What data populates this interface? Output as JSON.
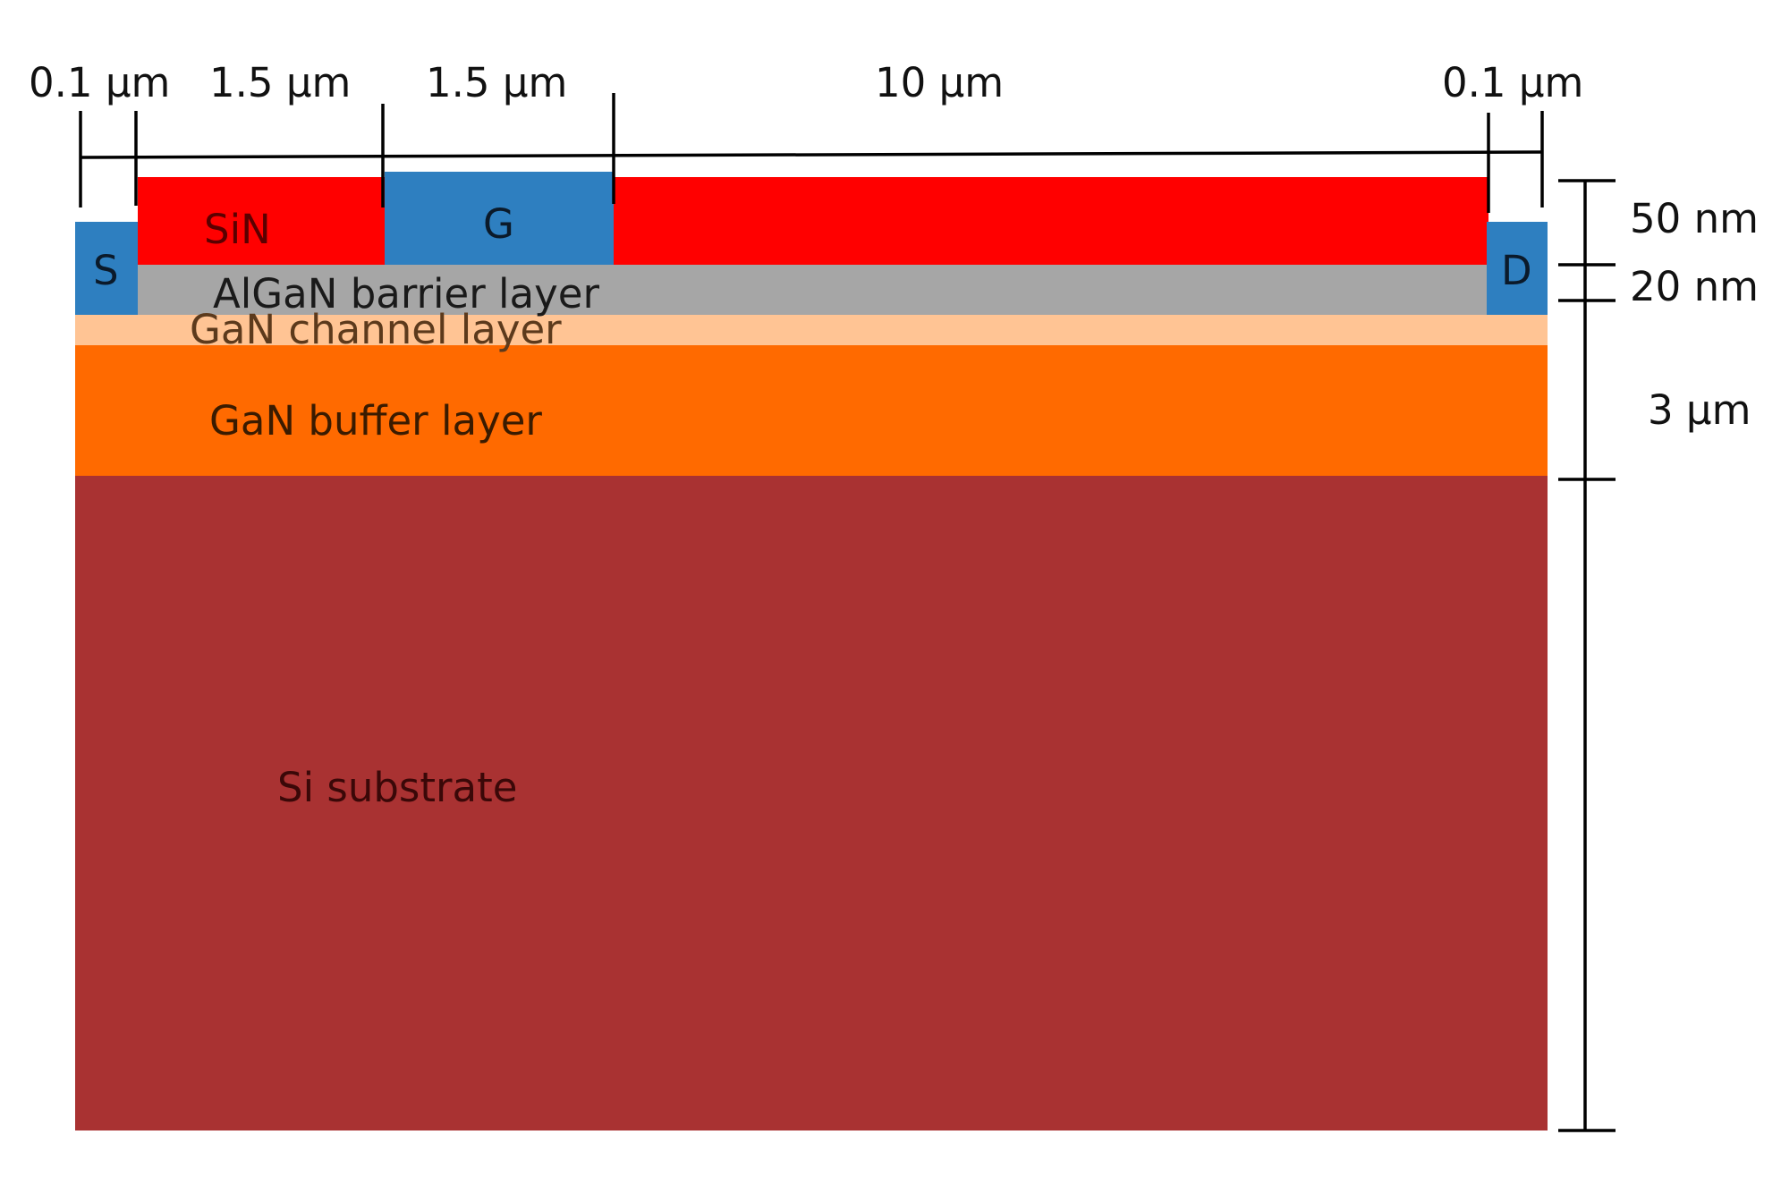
{
  "diagram": {
    "contacts": {
      "source": "S",
      "gate": "G",
      "drain": "D"
    },
    "layers": {
      "passivation": "SiN",
      "barrier": "AlGaN barrier layer",
      "channel": "GaN channel  layer",
      "buffer": "GaN buffer  layer",
      "substrate": "Si substrate"
    },
    "horizontal_dimensions": [
      "0.1 µm",
      "1.5 µm",
      "1.5 µm",
      "10 µm",
      "0.1 µm"
    ],
    "vertical_dimensions": [
      "50 nm",
      "20 nm",
      "3 µm"
    ],
    "colors": {
      "sin": "#ff0000",
      "contact": "#2e7fc0",
      "algan": "#a6a6a6",
      "gan_channel": "#ffc494",
      "gan_buffer": "#ff6a00",
      "si_substrate": "#a93232",
      "dimension_lines": "#000000"
    }
  }
}
